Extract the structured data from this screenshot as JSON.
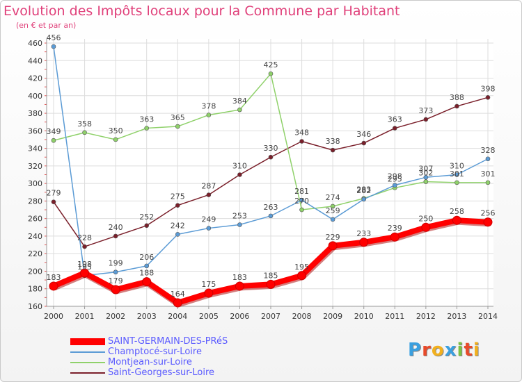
{
  "header": {
    "title": "Evolution des Impôts locaux pour la Commune par Habitant",
    "subtitle": "(en € et par an)"
  },
  "logo": {
    "text": "Proxiti",
    "colors": [
      "#3aa0e0",
      "#e84a2a",
      "#f2b01e",
      "#3aa0e0",
      "#7cc242",
      "#e84a2a",
      "#f2b01e"
    ]
  },
  "chart_data": {
    "type": "line",
    "x": [
      2000,
      2001,
      2002,
      2003,
      2004,
      2005,
      2006,
      2007,
      2008,
      2009,
      2010,
      2011,
      2012,
      2013,
      2014
    ],
    "ylim": [
      160,
      460
    ],
    "yticks": [
      160,
      180,
      200,
      220,
      240,
      260,
      280,
      300,
      320,
      340,
      360,
      380,
      400,
      420,
      440,
      460
    ],
    "grid": true,
    "legend_position": "bottom-left",
    "series": [
      {
        "name": "SAINT-GERMAIN-DES-PRéS",
        "color": "#ff0000",
        "values": [
          183,
          198,
          179,
          188,
          164,
          175,
          183,
          185,
          195,
          229,
          233,
          239,
          250,
          258,
          256
        ],
        "labels": [
          "183",
          "198",
          "179",
          "188",
          "164",
          "175",
          "183",
          "185",
          "195",
          "229",
          "233",
          "239",
          "250",
          "258",
          "256"
        ]
      },
      {
        "name": "Champtocé-sur-Loire",
        "color": "#5b9bd5",
        "values": [
          456,
          195,
          199,
          206,
          242,
          249,
          253,
          263,
          281,
          259,
          282,
          298,
          307,
          310,
          328
        ],
        "labels": [
          "456",
          "195",
          "199",
          "206",
          "242",
          "249",
          "253",
          "263",
          "281",
          "259",
          "282",
          "298",
          "307",
          "310",
          "328"
        ]
      },
      {
        "name": "Montjean-sur-Loire",
        "color": "#8fd16a",
        "values": [
          349,
          358,
          350,
          363,
          365,
          378,
          384,
          425,
          270,
          274,
          283,
          295,
          302,
          301,
          301
        ],
        "labels": [
          "349",
          "358",
          "350",
          "363",
          "365",
          "378",
          "384",
          "425",
          "270",
          "274",
          "283",
          "295",
          "302",
          "301",
          "301"
        ]
      },
      {
        "name": "Saint-Georges-sur-Loire",
        "color": "#7a1f2a",
        "values": [
          279,
          228,
          240,
          252,
          275,
          287,
          310,
          330,
          348,
          338,
          346,
          363,
          373,
          388,
          398
        ],
        "labels": [
          "279",
          "228",
          "240",
          "252",
          "275",
          "287",
          "310",
          "330",
          "348",
          "338",
          "346",
          "363",
          "373",
          "388",
          "398"
        ]
      }
    ]
  }
}
